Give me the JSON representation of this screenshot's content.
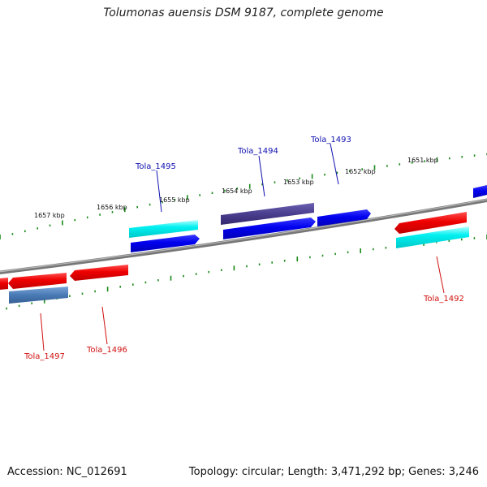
{
  "title": "Tolumonas auensis DSM 9187, complete genome",
  "footer": {
    "accession": "Accession: NC_012691",
    "summary": "Topology: circular; Length: 3,471,292 bp; Genes: 3,246"
  },
  "colors": {
    "backbone": "#8a8a8a",
    "tick": "#1a8a1a",
    "label_blue": "#1010b0",
    "label_red": "#d01010"
  },
  "kbp_labels": [
    "1651 kbp",
    "1652 kbp",
    "1653 kbp",
    "1654 kbp",
    "1655 kbp",
    "1656 kbp",
    "1657 kbp"
  ],
  "gene_labels": [
    {
      "text": "Tola_1493",
      "color": "#1010b0"
    },
    {
      "text": "Tola_1494",
      "color": "#1010b0"
    },
    {
      "text": "Tola_1495",
      "color": "#1010b0"
    },
    {
      "text": "Tola_1492",
      "color": "#d01010"
    },
    {
      "text": "Tola_1496",
      "color": "#d01010"
    },
    {
      "text": "Tola_1497",
      "color": "#d01010"
    }
  ]
}
